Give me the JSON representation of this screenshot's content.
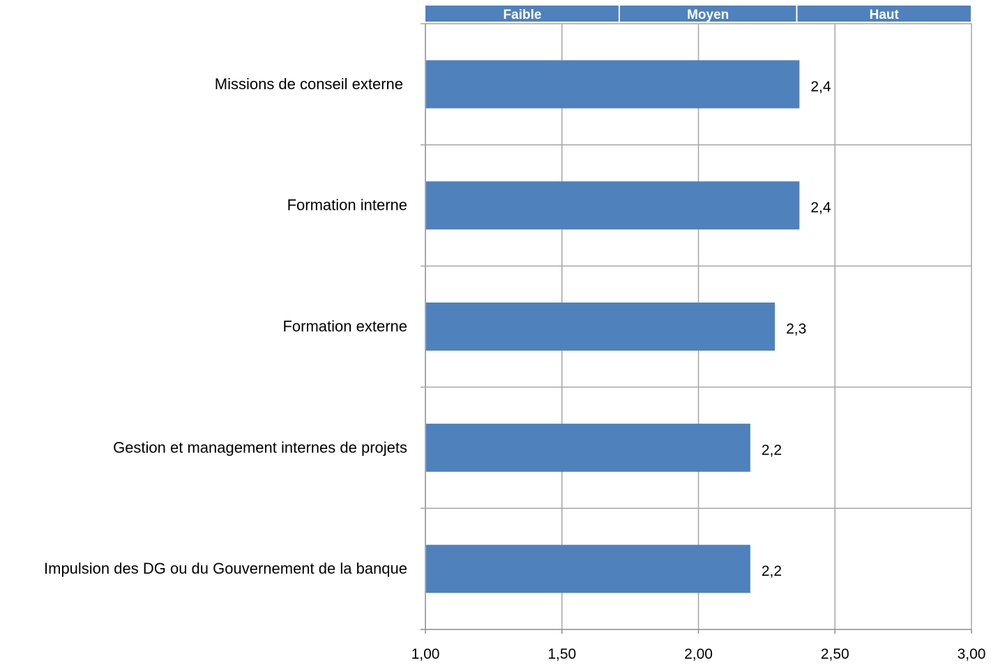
{
  "chart_data": {
    "type": "bar",
    "orientation": "horizontal",
    "categories": [
      "Missions de conseil externe",
      "Formation interne",
      "Formation externe",
      "Gestion et management internes de projets",
      "Impulsion des DG ou du Gouvernement de la banque"
    ],
    "values": [
      2.37,
      2.37,
      2.28,
      2.19,
      2.19
    ],
    "data_labels": [
      "2,4",
      "2,4",
      "2,3",
      "2,2",
      "2,2"
    ],
    "xlim": [
      1.0,
      3.0
    ],
    "x_ticks": [
      1.0,
      1.5,
      2.0,
      2.5,
      3.0
    ],
    "x_tick_labels": [
      "1,00",
      "1,50",
      "2,00",
      "2,50",
      "3,00"
    ],
    "grid": true,
    "title": "",
    "xlabel": "",
    "ylabel": "",
    "bands": [
      {
        "label": "Faible",
        "from": 1.0,
        "to": 1.71
      },
      {
        "label": "Moyen",
        "from": 1.71,
        "to": 2.36
      },
      {
        "label": "Haut",
        "from": 2.36,
        "to": 3.0
      }
    ],
    "colors": {
      "bar": "#4f81bd",
      "band": "#4f81bd",
      "grid": "#a6a6a6",
      "axis": "#8c8c8c"
    }
  }
}
